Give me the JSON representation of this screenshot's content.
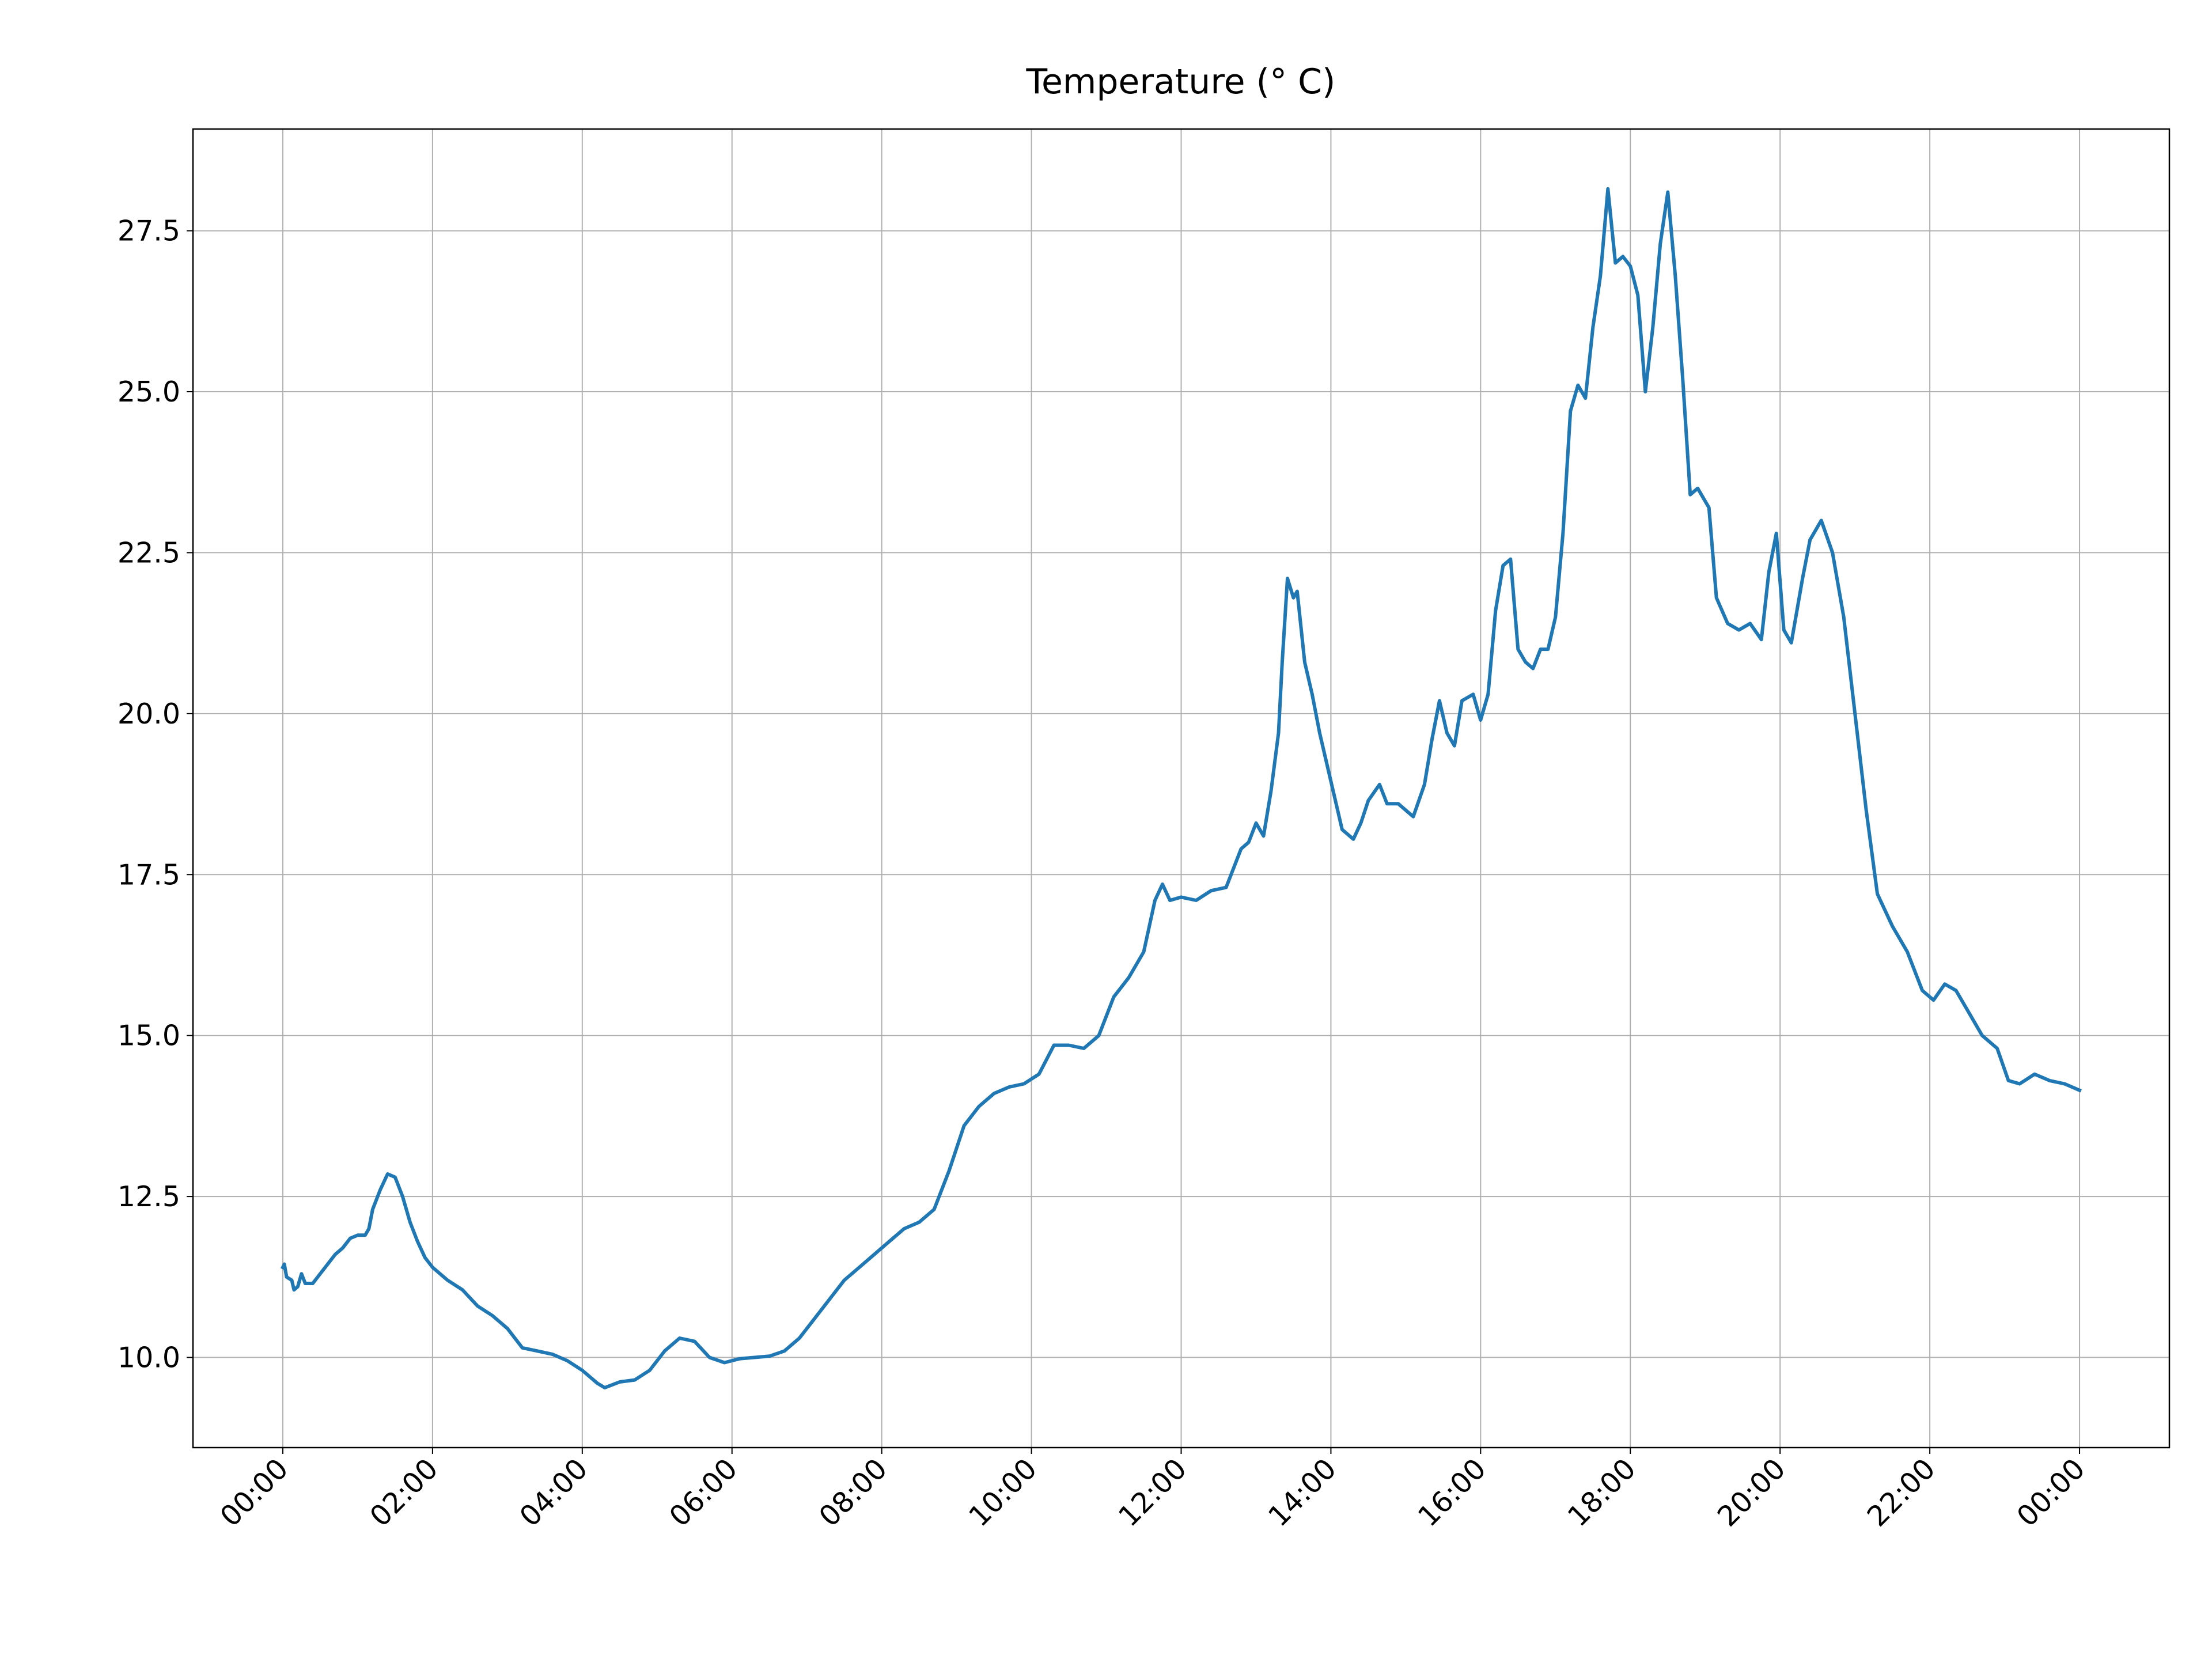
{
  "chart_data": {
    "type": "line",
    "title": "Temperature (° C)",
    "series": [
      {
        "name": "Temperature",
        "color": "#1f77b4",
        "x": [
          0.0,
          0.02,
          0.05,
          0.12,
          0.15,
          0.2,
          0.25,
          0.3,
          0.4,
          0.5,
          0.6,
          0.7,
          0.8,
          0.9,
          1.0,
          1.1,
          1.15,
          1.2,
          1.3,
          1.4,
          1.5,
          1.6,
          1.7,
          1.8,
          1.9,
          2.0,
          2.2,
          2.4,
          2.6,
          2.8,
          3.0,
          3.2,
          3.4,
          3.6,
          3.8,
          4.0,
          4.2,
          4.3,
          4.5,
          4.7,
          4.9,
          5.1,
          5.3,
          5.5,
          5.7,
          5.9,
          6.1,
          6.3,
          6.5,
          6.7,
          6.9,
          7.1,
          7.3,
          7.5,
          7.7,
          7.9,
          8.1,
          8.3,
          8.5,
          8.7,
          8.9,
          9.1,
          9.3,
          9.5,
          9.7,
          9.9,
          10.1,
          10.3,
          10.5,
          10.7,
          10.9,
          11.1,
          11.3,
          11.5,
          11.65,
          11.75,
          11.85,
          12.0,
          12.2,
          12.4,
          12.6,
          12.8,
          12.9,
          13.0,
          13.1,
          13.2,
          13.3,
          13.35,
          13.42,
          13.5,
          13.55,
          13.65,
          13.75,
          13.85,
          13.95,
          14.05,
          14.15,
          14.3,
          14.4,
          14.5,
          14.65,
          14.75,
          14.9,
          15.1,
          15.25,
          15.35,
          15.45,
          15.55,
          15.65,
          15.75,
          15.9,
          16.0,
          16.1,
          16.2,
          16.3,
          16.4,
          16.5,
          16.6,
          16.7,
          16.8,
          16.9,
          17.0,
          17.1,
          17.2,
          17.3,
          17.4,
          17.5,
          17.6,
          17.7,
          17.8,
          17.9,
          18.0,
          18.1,
          18.2,
          18.3,
          18.4,
          18.5,
          18.6,
          18.7,
          18.8,
          18.9,
          19.05,
          19.15,
          19.3,
          19.45,
          19.6,
          19.75,
          19.85,
          19.95,
          20.05,
          20.15,
          20.3,
          20.4,
          20.55,
          20.7,
          20.85,
          21.0,
          21.15,
          21.3,
          21.5,
          21.7,
          21.9,
          22.05,
          22.2,
          22.35,
          22.5,
          22.7,
          22.9,
          23.05,
          23.2,
          23.4,
          23.6,
          23.8,
          24.0
        ],
        "values": [
          11.4,
          11.45,
          11.25,
          11.2,
          11.05,
          11.1,
          11.3,
          11.15,
          11.15,
          11.3,
          11.45,
          11.6,
          11.7,
          11.85,
          11.9,
          11.9,
          12.0,
          12.3,
          12.6,
          12.85,
          12.8,
          12.5,
          12.1,
          11.8,
          11.55,
          11.4,
          11.2,
          11.05,
          10.8,
          10.65,
          10.45,
          10.15,
          10.1,
          10.05,
          9.95,
          9.8,
          9.6,
          9.53,
          9.62,
          9.65,
          9.8,
          10.1,
          10.3,
          10.25,
          10.0,
          9.92,
          9.98,
          10.0,
          10.02,
          10.1,
          10.3,
          10.6,
          10.9,
          11.2,
          11.4,
          11.6,
          11.8,
          12.0,
          12.1,
          12.3,
          12.9,
          13.6,
          13.9,
          14.1,
          14.2,
          14.25,
          14.4,
          14.85,
          14.85,
          14.8,
          15.0,
          15.6,
          15.9,
          16.3,
          17.1,
          17.35,
          17.1,
          17.15,
          17.1,
          17.25,
          17.3,
          17.9,
          18.0,
          18.3,
          18.1,
          18.8,
          19.7,
          20.8,
          22.1,
          21.8,
          21.9,
          20.8,
          20.3,
          19.7,
          19.2,
          18.7,
          18.2,
          18.05,
          18.3,
          18.65,
          18.9,
          18.6,
          18.6,
          18.4,
          18.9,
          19.6,
          20.2,
          19.7,
          19.5,
          20.2,
          20.3,
          19.9,
          20.3,
          21.6,
          22.3,
          22.4,
          21.0,
          20.8,
          20.7,
          21.0,
          21.0,
          21.5,
          22.8,
          24.7,
          25.1,
          24.9,
          26.0,
          26.8,
          28.15,
          27.0,
          27.1,
          26.95,
          26.5,
          25.0,
          26.0,
          27.3,
          28.1,
          26.8,
          25.2,
          23.4,
          23.5,
          23.2,
          21.8,
          21.4,
          21.3,
          21.4,
          21.15,
          22.2,
          22.8,
          21.3,
          21.1,
          22.1,
          22.7,
          23.0,
          22.5,
          21.5,
          20.0,
          18.5,
          17.2,
          16.7,
          16.3,
          15.7,
          15.55,
          15.8,
          15.7,
          15.4,
          15.0,
          14.8,
          14.3,
          14.25,
          14.4,
          14.3,
          14.25,
          14.15
        ]
      }
    ],
    "xlim": [
      -1.2,
      25.2
    ],
    "xticks": [
      {
        "value": 0,
        "label": "00:00"
      },
      {
        "value": 2,
        "label": "02:00"
      },
      {
        "value": 4,
        "label": "04:00"
      },
      {
        "value": 6,
        "label": "06:00"
      },
      {
        "value": 8,
        "label": "08:00"
      },
      {
        "value": 10,
        "label": "10:00"
      },
      {
        "value": 12,
        "label": "12:00"
      },
      {
        "value": 14,
        "label": "14:00"
      },
      {
        "value": 16,
        "label": "16:00"
      },
      {
        "value": 18,
        "label": "18:00"
      },
      {
        "value": 20,
        "label": "20:00"
      },
      {
        "value": 22,
        "label": "22:00"
      },
      {
        "value": 24,
        "label": "00:00"
      }
    ],
    "ylim": [
      8.6,
      29.08
    ],
    "yticks": [
      {
        "value": 10,
        "label": "10.0"
      },
      12.5,
      {
        "value": 15,
        "label": "15.0"
      },
      17.5,
      {
        "value": 20,
        "label": "20.0"
      },
      22.5,
      {
        "value": 25,
        "label": "25.0"
      },
      27.5
    ],
    "grid": true
  }
}
